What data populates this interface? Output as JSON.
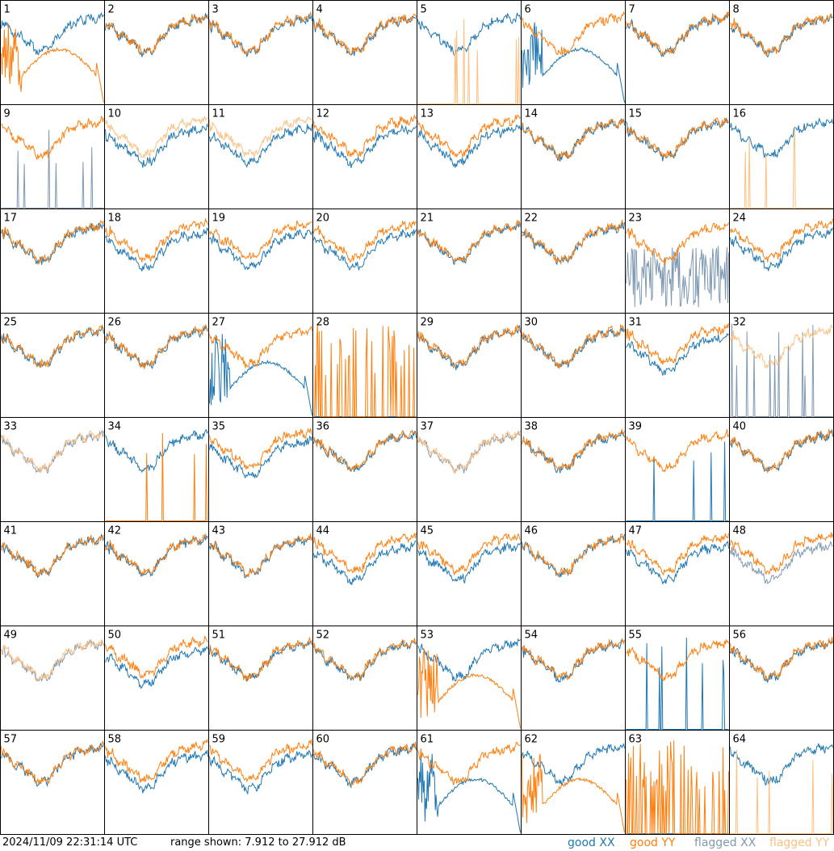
{
  "footer": {
    "timestamp": "2024/11/09 22:31:14 UTC",
    "range": "range shown: 7.912 to 27.912 dB",
    "legend": {
      "good_xx": "good XX",
      "good_yy": "good YY",
      "flagged_xx": "flagged XX",
      "flagged_yy": "flagged YY"
    }
  },
  "colors": {
    "good_xx": "#1f77b4",
    "good_yy": "#ff7f0e",
    "flagged_xx": "#7f99b3",
    "flagged_yy": "#ffbf80",
    "grid": "#000000"
  },
  "chart_data": {
    "type": "line",
    "description_units": "dB",
    "ylim": [
      7.912,
      27.912
    ],
    "layout": "8x8 small multiples, one panel per antenna",
    "series_names": [
      "good XX",
      "good YY",
      "flagged XX",
      "flagged YY"
    ],
    "panels": [
      {
        "id": "1",
        "xx": "good",
        "yy": "good",
        "shape": "drop_yy"
      },
      {
        "id": "2",
        "xx": "good",
        "yy": "good",
        "shape": "normal"
      },
      {
        "id": "3",
        "xx": "good",
        "yy": "good",
        "shape": "normal"
      },
      {
        "id": "4",
        "xx": "good",
        "yy": "good",
        "shape": "normal"
      },
      {
        "id": "5",
        "xx": "good",
        "yy": "flagged",
        "shape": "yy_dead"
      },
      {
        "id": "6",
        "xx": "good",
        "yy": "good",
        "shape": "xx_broken"
      },
      {
        "id": "7",
        "xx": "good",
        "yy": "good",
        "shape": "normal"
      },
      {
        "id": "8",
        "xx": "good",
        "yy": "good",
        "shape": "normal"
      },
      {
        "id": "9",
        "xx": "flagged",
        "yy": "good",
        "shape": "xx_dead"
      },
      {
        "id": "10",
        "xx": "good",
        "yy": "flagged",
        "shape": "split"
      },
      {
        "id": "11",
        "xx": "good",
        "yy": "flagged",
        "shape": "split"
      },
      {
        "id": "12",
        "xx": "good",
        "yy": "good",
        "shape": "split"
      },
      {
        "id": "13",
        "xx": "good",
        "yy": "good",
        "shape": "split"
      },
      {
        "id": "14",
        "xx": "good",
        "yy": "good",
        "shape": "normal"
      },
      {
        "id": "15",
        "xx": "good",
        "yy": "good",
        "shape": "normal"
      },
      {
        "id": "16",
        "xx": "good",
        "yy": "flagged",
        "shape": "yy_dead"
      },
      {
        "id": "17",
        "xx": "good",
        "yy": "good",
        "shape": "normal"
      },
      {
        "id": "18",
        "xx": "good",
        "yy": "good",
        "shape": "split"
      },
      {
        "id": "19",
        "xx": "good",
        "yy": "good",
        "shape": "split"
      },
      {
        "id": "20",
        "xx": "good",
        "yy": "good",
        "shape": "split"
      },
      {
        "id": "21",
        "xx": "good",
        "yy": "good",
        "shape": "normal"
      },
      {
        "id": "22",
        "xx": "good",
        "yy": "good",
        "shape": "normal"
      },
      {
        "id": "23",
        "xx": "flagged",
        "yy": "good",
        "shape": "xx_noise"
      },
      {
        "id": "24",
        "xx": "good",
        "yy": "good",
        "shape": "split"
      },
      {
        "id": "25",
        "xx": "good",
        "yy": "good",
        "shape": "normal"
      },
      {
        "id": "26",
        "xx": "good",
        "yy": "good",
        "shape": "normal"
      },
      {
        "id": "27",
        "xx": "good",
        "yy": "good",
        "shape": "xx_broken"
      },
      {
        "id": "28",
        "xx": "good",
        "yy": "good",
        "shape": "both_dead"
      },
      {
        "id": "29",
        "xx": "good",
        "yy": "good",
        "shape": "normal"
      },
      {
        "id": "30",
        "xx": "good",
        "yy": "good",
        "shape": "normal"
      },
      {
        "id": "31",
        "xx": "good",
        "yy": "good",
        "shape": "split"
      },
      {
        "id": "32",
        "xx": "flagged",
        "yy": "flagged",
        "shape": "xx_dead"
      },
      {
        "id": "33",
        "xx": "flagged",
        "yy": "flagged",
        "shape": "normal"
      },
      {
        "id": "34",
        "xx": "good",
        "yy": "good",
        "shape": "yy_dead"
      },
      {
        "id": "35",
        "xx": "good",
        "yy": "good",
        "shape": "split"
      },
      {
        "id": "36",
        "xx": "good",
        "yy": "good",
        "shape": "normal"
      },
      {
        "id": "37",
        "xx": "flagged",
        "yy": "flagged",
        "shape": "normal"
      },
      {
        "id": "38",
        "xx": "good",
        "yy": "good",
        "shape": "normal"
      },
      {
        "id": "39",
        "xx": "good",
        "yy": "good",
        "shape": "xx_dead"
      },
      {
        "id": "40",
        "xx": "good",
        "yy": "good",
        "shape": "normal"
      },
      {
        "id": "41",
        "xx": "good",
        "yy": "good",
        "shape": "normal"
      },
      {
        "id": "42",
        "xx": "good",
        "yy": "good",
        "shape": "normal"
      },
      {
        "id": "43",
        "xx": "good",
        "yy": "good",
        "shape": "normal"
      },
      {
        "id": "44",
        "xx": "good",
        "yy": "good",
        "shape": "split"
      },
      {
        "id": "45",
        "xx": "good",
        "yy": "good",
        "shape": "split"
      },
      {
        "id": "46",
        "xx": "good",
        "yy": "good",
        "shape": "normal"
      },
      {
        "id": "47",
        "xx": "good",
        "yy": "good",
        "shape": "split"
      },
      {
        "id": "48",
        "xx": "flagged",
        "yy": "good",
        "shape": "split"
      },
      {
        "id": "49",
        "xx": "flagged",
        "yy": "flagged",
        "shape": "normal"
      },
      {
        "id": "50",
        "xx": "good",
        "yy": "good",
        "shape": "split"
      },
      {
        "id": "51",
        "xx": "good",
        "yy": "good",
        "shape": "normal"
      },
      {
        "id": "52",
        "xx": "good",
        "yy": "good",
        "shape": "normal"
      },
      {
        "id": "53",
        "xx": "good",
        "yy": "good",
        "shape": "drop_yy"
      },
      {
        "id": "54",
        "xx": "good",
        "yy": "good",
        "shape": "normal"
      },
      {
        "id": "55",
        "xx": "good",
        "yy": "good",
        "shape": "xx_dead"
      },
      {
        "id": "56",
        "xx": "good",
        "yy": "good",
        "shape": "normal"
      },
      {
        "id": "57",
        "xx": "good",
        "yy": "good",
        "shape": "normal"
      },
      {
        "id": "58",
        "xx": "good",
        "yy": "good",
        "shape": "split"
      },
      {
        "id": "59",
        "xx": "good",
        "yy": "good",
        "shape": "split"
      },
      {
        "id": "60",
        "xx": "good",
        "yy": "good",
        "shape": "normal"
      },
      {
        "id": "61",
        "xx": "good",
        "yy": "good",
        "shape": "xx_broken"
      },
      {
        "id": "62",
        "xx": "good",
        "yy": "good",
        "shape": "drop_yy"
      },
      {
        "id": "63",
        "xx": "good",
        "yy": "good",
        "shape": "both_dead"
      },
      {
        "id": "64",
        "xx": "good",
        "yy": "flagged",
        "shape": "yy_dead"
      }
    ]
  }
}
